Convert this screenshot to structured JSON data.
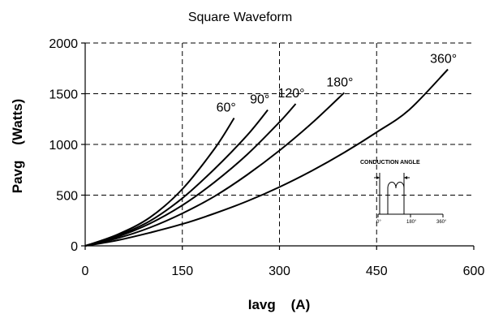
{
  "chart_data": {
    "type": "line",
    "title": "Square Waveform",
    "xlabel": "Iavg    (A)",
    "ylabel": "Pavg    (Watts)",
    "xlim": [
      0,
      600
    ],
    "ylim": [
      0,
      2000
    ],
    "xticks": [
      "0",
      "150",
      "300",
      "450",
      "600"
    ],
    "yticks": [
      "0",
      "500",
      "1000",
      "1500",
      "2000"
    ],
    "grid": "dashed",
    "series": [
      {
        "name": "60°",
        "x": [
          0,
          50,
          100,
          150,
          200,
          230
        ],
        "y": [
          0,
          112,
          280,
          560,
          960,
          1260
        ]
      },
      {
        "name": "90°",
        "x": [
          0,
          50,
          100,
          150,
          200,
          250,
          282
        ],
        "y": [
          0,
          100,
          245,
          470,
          760,
          1090,
          1340
        ]
      },
      {
        "name": "120°",
        "x": [
          0,
          50,
          100,
          150,
          200,
          250,
          300,
          325
        ],
        "y": [
          0,
          90,
          220,
          400,
          630,
          900,
          1220,
          1400
        ]
      },
      {
        "name": "180°",
        "x": [
          0,
          50,
          100,
          150,
          200,
          250,
          300,
          350,
          400
        ],
        "y": [
          0,
          75,
          180,
          320,
          490,
          700,
          940,
          1210,
          1510
        ]
      },
      {
        "name": "360°",
        "x": [
          0,
          50,
          100,
          150,
          200,
          250,
          300,
          350,
          400,
          450,
          500,
          560
        ],
        "y": [
          0,
          55,
          130,
          215,
          320,
          440,
          580,
          740,
          920,
          1120,
          1340,
          1740
        ]
      }
    ],
    "inset": {
      "title": "CONDUCTION ANGLE",
      "ticks": [
        "0°",
        "180°",
        "360°"
      ]
    }
  }
}
